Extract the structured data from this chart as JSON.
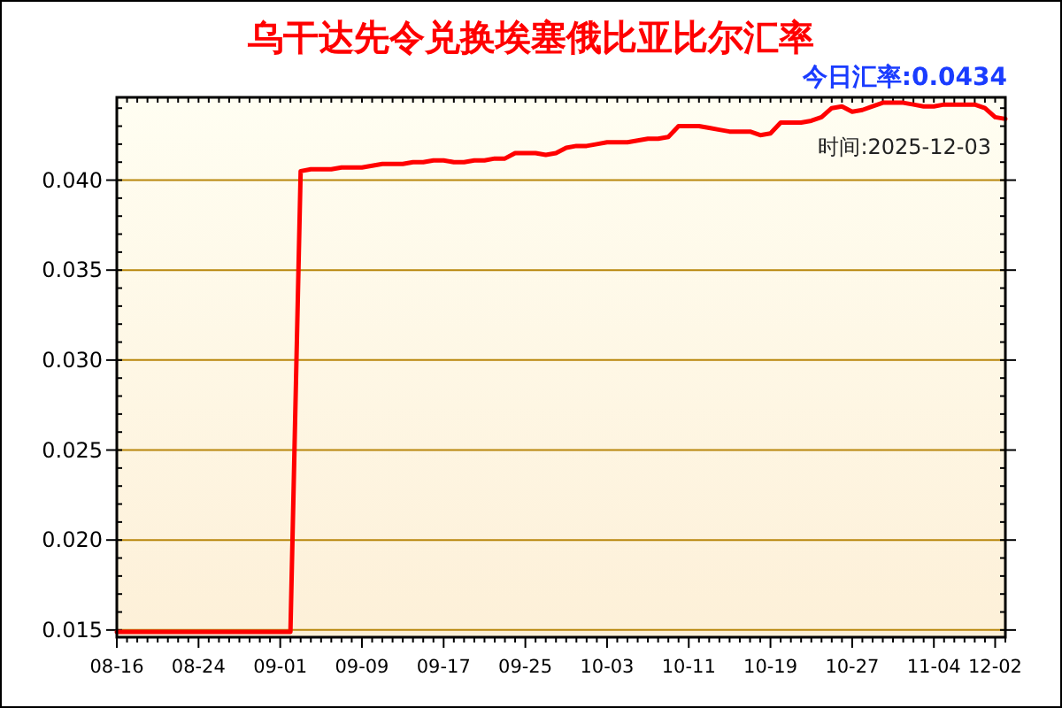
{
  "chart_data": {
    "type": "line",
    "title": "乌干达先令兑换埃塞俄比亚比尔汇率",
    "annotations": [
      "今日汇率:0.0434",
      "时间:2025-12-03"
    ],
    "categories": [
      "08-16",
      null,
      null,
      null,
      null,
      null,
      null,
      null,
      "08-24",
      null,
      null,
      null,
      null,
      null,
      null,
      null,
      "09-01",
      null,
      null,
      null,
      null,
      null,
      null,
      null,
      "09-09",
      null,
      null,
      null,
      null,
      null,
      null,
      null,
      "09-17",
      null,
      null,
      null,
      null,
      null,
      null,
      null,
      "09-25",
      null,
      null,
      null,
      null,
      null,
      null,
      null,
      "10-03",
      null,
      null,
      null,
      null,
      null,
      null,
      null,
      "10-11",
      null,
      null,
      null,
      null,
      null,
      null,
      null,
      "10-19",
      null,
      null,
      null,
      null,
      null,
      null,
      null,
      "10-27",
      null,
      null,
      null,
      null,
      null,
      null,
      null,
      "11-04",
      null,
      null,
      null,
      null,
      null,
      "12-02",
      null
    ],
    "series": [
      {
        "color": "#ff0000",
        "values": [
          0.0149,
          0.0149,
          0.0149,
          0.0149,
          0.0149,
          0.0149,
          0.0149,
          0.0149,
          0.0149,
          0.0149,
          0.0149,
          0.0149,
          0.0149,
          0.0149,
          0.0149,
          0.0149,
          0.0149,
          0.0149,
          0.0405,
          0.0406,
          0.0406,
          0.0406,
          0.0407,
          0.0407,
          0.0407,
          0.0408,
          0.0409,
          0.0409,
          0.0409,
          0.041,
          0.041,
          0.0411,
          0.0411,
          0.041,
          0.041,
          0.0411,
          0.0411,
          0.0412,
          0.0412,
          0.0415,
          0.0415,
          0.0415,
          0.0414,
          0.0415,
          0.0418,
          0.0419,
          0.0419,
          0.042,
          0.0421,
          0.0421,
          0.0421,
          0.0422,
          0.0423,
          0.0423,
          0.0424,
          0.043,
          0.043,
          0.043,
          0.0429,
          0.0428,
          0.0427,
          0.0427,
          0.0427,
          0.0425,
          0.0426,
          0.0432,
          0.0432,
          0.0432,
          0.0433,
          0.0435,
          0.044,
          0.0441,
          0.0438,
          0.0439,
          0.0441,
          0.0443,
          0.0443,
          0.0443,
          0.0442,
          0.0441,
          0.0441,
          0.0442,
          0.0442,
          0.0442,
          0.0442,
          0.044,
          0.0435,
          0.0434
        ]
      }
    ],
    "ylim": [
      0.0146,
      0.0446
    ],
    "yticks": [
      0.015,
      {
        "value": 0.02,
        "label": "0.020"
      },
      0.025,
      {
        "value": 0.03,
        "label": "0.030"
      },
      0.035,
      {
        "value": 0.04,
        "label": "0.040"
      }
    ],
    "grid": "y",
    "marker": "none",
    "line_style": "solid"
  }
}
